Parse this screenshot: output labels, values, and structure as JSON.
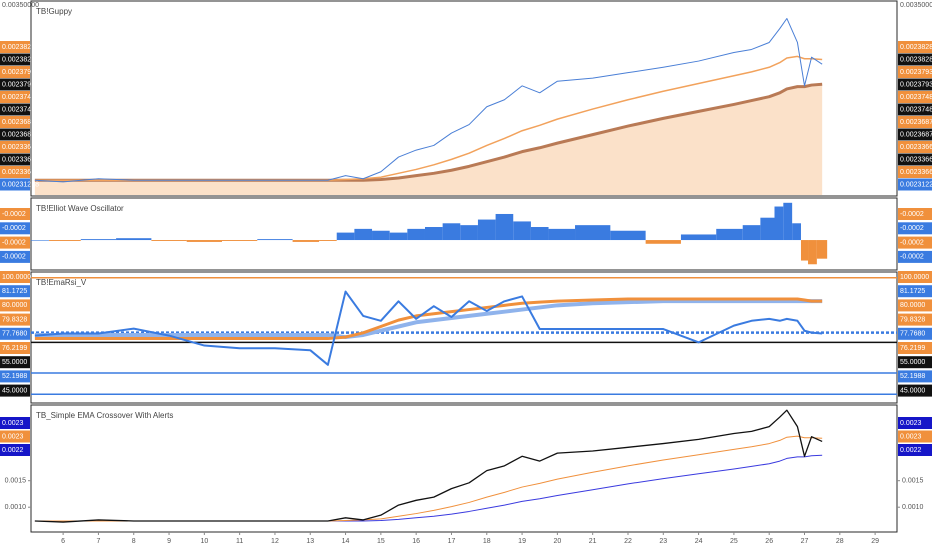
{
  "chart_data": [
    {
      "type": "line",
      "title": "TB!Guppy",
      "x": [
        5.2,
        6,
        7,
        8,
        9,
        10,
        11,
        12,
        13,
        13.5,
        14,
        14.5,
        15,
        15.5,
        16,
        16.5,
        17,
        17.5,
        18,
        18.5,
        19,
        19.5,
        20,
        21,
        22,
        23,
        24,
        25,
        25.5,
        26,
        26.3,
        26.5,
        26.8,
        27,
        27.2,
        27.5
      ],
      "ylim": [
        0.00055,
        0.00303
      ],
      "series": [
        {
          "color": "#b97a55",
          "width": 3,
          "values": [
            0.00074,
            0.00074,
            0.00074,
            0.00074,
            0.00074,
            0.00074,
            0.00074,
            0.00074,
            0.00074,
            0.00074,
            0.00074,
            0.00074,
            0.00075,
            0.00077,
            0.0008,
            0.00083,
            0.00087,
            0.00092,
            0.00098,
            0.00104,
            0.00111,
            0.00116,
            0.00122,
            0.00133,
            0.00144,
            0.00154,
            0.00163,
            0.00172,
            0.00177,
            0.00182,
            0.00187,
            0.00192,
            0.00195,
            0.00195,
            0.00197,
            0.00198
          ]
        },
        {
          "color": "#f2a25c",
          "width": 1.5,
          "values": [
            0.00074,
            0.00074,
            0.00074,
            0.00074,
            0.00074,
            0.00074,
            0.00074,
            0.00074,
            0.00074,
            0.00074,
            0.00075,
            0.00076,
            0.00078,
            0.00083,
            0.00088,
            0.00094,
            0.00101,
            0.00109,
            0.00119,
            0.00128,
            0.00138,
            0.00145,
            0.00153,
            0.00166,
            0.00178,
            0.00189,
            0.00199,
            0.00209,
            0.00214,
            0.0022,
            0.00226,
            0.00232,
            0.00234,
            0.00231,
            0.00231,
            0.0023
          ]
        },
        {
          "color": "#4a7fd6",
          "width": 1,
          "values": [
            0.00074,
            0.00072,
            0.00076,
            0.00074,
            0.00074,
            0.00074,
            0.00074,
            0.00074,
            0.00074,
            0.00074,
            0.0008,
            0.00076,
            0.00085,
            0.00104,
            0.00113,
            0.00119,
            0.00135,
            0.00146,
            0.00169,
            0.00178,
            0.00196,
            0.00187,
            0.00202,
            0.00206,
            0.00213,
            0.0022,
            0.00228,
            0.00239,
            0.00243,
            0.00252,
            0.0027,
            0.00283,
            0.00252,
            0.00196,
            0.00233,
            0.00224
          ]
        }
      ],
      "tags": [
        {
          "label": "0.00350000",
          "color": null
        },
        {
          "label": "0.00238286",
          "color": "#f0903c"
        },
        {
          "label": "0.00238286",
          "color": "#111111"
        },
        {
          "label": "0.00237935",
          "color": "#f0903c"
        },
        {
          "label": "0.00237935",
          "color": "#111111"
        },
        {
          "label": "0.00237487",
          "color": "#f0903c"
        },
        {
          "label": "0.00237487",
          "color": "#111111"
        },
        {
          "label": "0.00236872",
          "color": "#f0903c"
        },
        {
          "label": "0.00236872",
          "color": "#111111"
        },
        {
          "label": "0.00233667",
          "color": "#f0903c"
        },
        {
          "label": "0.00233667",
          "color": "#111111"
        },
        {
          "label": "0.00233667",
          "color": "#f0903c"
        },
        {
          "label": "0.00231228",
          "color": "#3a7be0"
        }
      ]
    },
    {
      "type": "bar",
      "title": "TB!Elliot Wave Oscillator",
      "x": [
        5.2,
        6,
        7,
        8,
        9,
        10,
        11,
        12,
        13,
        13.5,
        14,
        14.5,
        15,
        15.5,
        16,
        16.5,
        17,
        17.5,
        18,
        18.5,
        19,
        19.5,
        20,
        21,
        22,
        23,
        24,
        25,
        25.5,
        26,
        26.3,
        26.5,
        26.8,
        27,
        27.2,
        27.5
      ],
      "ylim": [
        -0.0003,
        0.00043
      ],
      "color_up": "#3a7be0",
      "color_down": "#f0903c",
      "values": [
        0,
        -1e-05,
        1e-05,
        2e-05,
        -1e-05,
        -2e-05,
        -1e-05,
        1e-05,
        -2e-05,
        -1e-05,
        8e-05,
        0.00012,
        0.0001,
        8e-05,
        0.00012,
        0.00014,
        0.00018,
        0.00016,
        0.00022,
        0.00028,
        0.0002,
        0.00014,
        0.00012,
        0.00016,
        0.0001,
        -4e-05,
        6e-05,
        0.00012,
        0.00016,
        0.00024,
        0.00036,
        0.0004,
        0.00018,
        -0.00022,
        -0.00026,
        -0.0002
      ],
      "tags": [
        {
          "label": "-0.0002",
          "color": "#f0903c"
        },
        {
          "label": "-0.0002",
          "color": "#3a7be0"
        },
        {
          "label": "-0.0002",
          "color": "#f0903c"
        },
        {
          "label": "-0.0002",
          "color": "#3a7be0"
        }
      ]
    },
    {
      "type": "line",
      "title": "TB!EmaRsi_V",
      "x": [
        5.2,
        6,
        7,
        8,
        9,
        10,
        11,
        12,
        13,
        13.5,
        14,
        14.5,
        15,
        15.5,
        16,
        16.5,
        17,
        17.5,
        18,
        18.5,
        19,
        19.5,
        20,
        21,
        22,
        23,
        24,
        25,
        25.5,
        26,
        26.3,
        26.5,
        26.8,
        27,
        27.2,
        27.5
      ],
      "ylim": [
        41.8,
        101.8
      ],
      "hlines": [
        {
          "value": 100,
          "color": "#f0903c",
          "dash": false
        },
        {
          "value": 74.1,
          "color": "#3a7be0",
          "dash": true
        },
        {
          "value": 69.5,
          "color": "#111111",
          "dash": false
        },
        {
          "value": 55,
          "color": "#3a7be0",
          "dash": false
        },
        {
          "value": 45,
          "color": "#3a7be0",
          "dash": false
        }
      ],
      "series": [
        {
          "color": "#8fb3ec",
          "width": 4,
          "values": [
            73,
            73,
            73,
            73,
            73,
            73,
            73,
            73,
            73,
            73,
            72,
            73,
            75,
            77,
            79,
            80,
            81,
            82,
            83,
            84,
            85,
            86,
            87,
            88,
            88.5,
            89,
            89,
            89,
            89,
            89,
            89,
            89,
            89,
            89,
            89,
            89
          ]
        },
        {
          "color": "#f0903c",
          "width": 3,
          "values": [
            71.3,
            71.3,
            71.3,
            71.3,
            71.3,
            71.3,
            71.3,
            71.3,
            71.3,
            71.3,
            72,
            74,
            77,
            80,
            82,
            83,
            84,
            85,
            86,
            87,
            88,
            88.5,
            89,
            89.5,
            90,
            90,
            90,
            90,
            90,
            90,
            90,
            90,
            90,
            89.5,
            89,
            89
          ]
        },
        {
          "color": "#3a7be0",
          "width": 2,
          "values": [
            72.7,
            73.7,
            73.7,
            76,
            72.7,
            68,
            66.7,
            66.7,
            65.8,
            58.9,
            93.5,
            82,
            79.7,
            88.9,
            80.6,
            86.6,
            81.5,
            88.9,
            84.3,
            88.9,
            91.2,
            75.8,
            75.8,
            75.8,
            75.8,
            75.8,
            69.5,
            77.4,
            79.7,
            80.6,
            79.7,
            80.6,
            79.7,
            75,
            74.1,
            73.7
          ]
        }
      ],
      "tags": [
        {
          "label": "100.0000",
          "color": "#f0903c"
        },
        {
          "label": "81.1725",
          "color": "#3a7be0"
        },
        {
          "label": "80.0000",
          "color": "#f0903c"
        },
        {
          "label": "79.8328",
          "color": "#f0903c"
        },
        {
          "label": "77.7680",
          "color": "#3a7be0"
        },
        {
          "label": "76.2199",
          "color": "#f0903c"
        },
        {
          "label": "55.0000",
          "color": "#111111"
        },
        {
          "label": "52.1988",
          "color": "#3a7be0"
        },
        {
          "label": "45.0000",
          "color": "#111111"
        }
      ]
    },
    {
      "type": "line",
      "title": "TB_Simple EMA Crossover With Alerts",
      "x": [
        5.2,
        6,
        7,
        8,
        9,
        10,
        11,
        12,
        13,
        13.5,
        14,
        14.5,
        15,
        15.5,
        16,
        16.5,
        17,
        17.5,
        18,
        18.5,
        19,
        19.5,
        20,
        21,
        22,
        23,
        24,
        25,
        25.5,
        26,
        26.3,
        26.5,
        26.8,
        27,
        27.2,
        27.5
      ],
      "xlim": [
        5.09,
        29.62
      ],
      "xticks": [
        6,
        7,
        8,
        9,
        10,
        11,
        12,
        13,
        14,
        15,
        16,
        17,
        18,
        19,
        20,
        21,
        22,
        23,
        24,
        25,
        26,
        27,
        28,
        29
      ],
      "ylim": [
        0.00057,
        0.00289
      ],
      "yticks": [
        {
          "value": 0.0015,
          "label": "0.0015"
        },
        {
          "value": 0.001,
          "label": "0.0010"
        }
      ],
      "series": [
        {
          "color": "#3a3adf",
          "width": 1,
          "values": [
            0.00074,
            0.00074,
            0.00074,
            0.00074,
            0.00074,
            0.00074,
            0.00074,
            0.00074,
            0.00074,
            0.00074,
            0.00074,
            0.00074,
            0.00075,
            0.00077,
            0.0008,
            0.00083,
            0.00087,
            0.00092,
            0.00098,
            0.00104,
            0.00111,
            0.00116,
            0.00122,
            0.00133,
            0.00144,
            0.00154,
            0.00163,
            0.00172,
            0.00177,
            0.00182,
            0.00187,
            0.00192,
            0.00195,
            0.00195,
            0.00197,
            0.00198
          ]
        },
        {
          "color": "#f0903c",
          "width": 1,
          "values": [
            0.00074,
            0.00074,
            0.00074,
            0.00074,
            0.00074,
            0.00074,
            0.00074,
            0.00074,
            0.00074,
            0.00074,
            0.00075,
            0.00076,
            0.00078,
            0.00083,
            0.00088,
            0.00094,
            0.00101,
            0.00109,
            0.00119,
            0.00128,
            0.00138,
            0.00145,
            0.00153,
            0.00166,
            0.00178,
            0.00189,
            0.00199,
            0.00209,
            0.00214,
            0.0022,
            0.00226,
            0.00232,
            0.00234,
            0.00231,
            0.00231,
            0.0023
          ]
        },
        {
          "color": "#111111",
          "width": 1.3,
          "values": [
            0.00074,
            0.00072,
            0.00076,
            0.00074,
            0.00074,
            0.00074,
            0.00074,
            0.00074,
            0.00074,
            0.00074,
            0.0008,
            0.00076,
            0.00085,
            0.00104,
            0.00113,
            0.00119,
            0.00135,
            0.00146,
            0.00169,
            0.00178,
            0.00196,
            0.00187,
            0.00202,
            0.00206,
            0.00213,
            0.0022,
            0.00228,
            0.00239,
            0.00243,
            0.00252,
            0.0027,
            0.00283,
            0.00252,
            0.00196,
            0.00233,
            0.00224
          ]
        }
      ],
      "tags": [
        {
          "label": "0.0023",
          "color": "#1616c8"
        },
        {
          "label": "0.0023",
          "color": "#f0903c"
        },
        {
          "label": "0.0022",
          "color": "#1616c8"
        }
      ]
    }
  ]
}
